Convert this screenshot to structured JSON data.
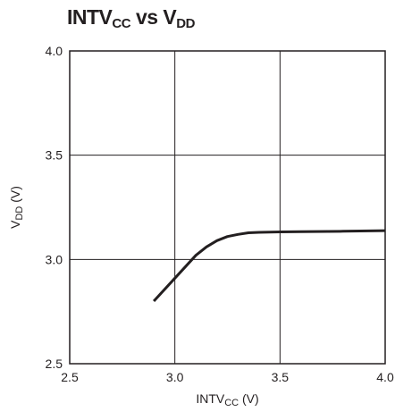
{
  "chart_data": {
    "type": "line",
    "title": {
      "main": "INTV",
      "main_sub": "CC",
      "mid": " vs V",
      "end_sub": "DD"
    },
    "xlabel": {
      "main": "INTV",
      "sub": "CC",
      "unit": " (V)"
    },
    "ylabel": {
      "main": "V",
      "sub": "DD",
      "unit": " (V)"
    },
    "xlim": [
      2.5,
      4.0
    ],
    "ylim": [
      2.5,
      4.0
    ],
    "xticks": [
      2.5,
      3.0,
      3.5,
      4.0
    ],
    "yticks": [
      2.5,
      3.0,
      3.5,
      4.0
    ],
    "xtick_labels": [
      "2.5",
      "3.0",
      "3.5",
      "4.0"
    ],
    "ytick_labels": [
      "2.5",
      "3.0",
      "3.5",
      "4.0"
    ],
    "grid": true,
    "series": [
      {
        "color": "#231f20",
        "x": [
          2.9,
          3.0,
          3.1,
          3.15,
          3.2,
          3.25,
          3.3,
          3.35,
          3.4,
          3.5,
          3.6,
          3.8,
          4.0
        ],
        "y": [
          2.8,
          2.91,
          3.02,
          3.06,
          3.09,
          3.11,
          3.12,
          3.128,
          3.13,
          3.132,
          3.133,
          3.135,
          3.138
        ]
      }
    ]
  }
}
